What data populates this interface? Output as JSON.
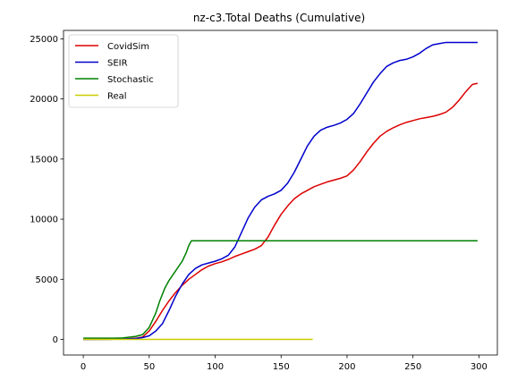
{
  "chart_data": {
    "type": "line",
    "title": "nz-c3.Total Deaths (Cumulative)",
    "xlabel": "",
    "ylabel": "",
    "xlim": [
      -15,
      314
    ],
    "ylim": [
      -1300,
      25700
    ],
    "x_ticks": [
      0,
      50,
      100,
      150,
      200,
      250,
      300
    ],
    "y_ticks": [
      0,
      5000,
      10000,
      15000,
      20000,
      25000
    ],
    "grid": false,
    "legend_position": "top-left",
    "series": [
      {
        "name": "CovidSim",
        "color": "#dd0000",
        "x": [
          0,
          20,
          30,
          40,
          45,
          50,
          55,
          60,
          65,
          70,
          75,
          80,
          85,
          90,
          95,
          100,
          105,
          110,
          115,
          120,
          125,
          130,
          135,
          140,
          145,
          150,
          155,
          160,
          165,
          170,
          175,
          180,
          185,
          190,
          195,
          200,
          205,
          210,
          215,
          220,
          225,
          230,
          235,
          240,
          245,
          250,
          255,
          260,
          265,
          270,
          275,
          280,
          285,
          290,
          295,
          299
        ],
        "y": [
          0,
          10,
          30,
          100,
          200,
          700,
          1500,
          2400,
          3200,
          3900,
          4500,
          5000,
          5400,
          5800,
          6100,
          6300,
          6450,
          6650,
          6900,
          7100,
          7300,
          7500,
          7800,
          8500,
          9500,
          10400,
          11100,
          11700,
          12100,
          12400,
          12700,
          12900,
          13100,
          13250,
          13400,
          13600,
          14100,
          14800,
          15600,
          16300,
          16900,
          17300,
          17600,
          17850,
          18050,
          18200,
          18350,
          18450,
          18550,
          18700,
          18900,
          19300,
          19900,
          20600,
          21200,
          21300
        ]
      },
      {
        "name": "SEIR",
        "color": "#0000cc",
        "x": [
          0,
          20,
          30,
          40,
          45,
          50,
          55,
          60,
          65,
          70,
          75,
          80,
          85,
          90,
          95,
          100,
          105,
          110,
          115,
          120,
          125,
          130,
          135,
          140,
          145,
          150,
          155,
          160,
          165,
          170,
          175,
          180,
          185,
          190,
          195,
          200,
          205,
          210,
          215,
          220,
          225,
          230,
          235,
          240,
          245,
          250,
          255,
          260,
          265,
          270,
          275,
          280,
          285,
          290,
          295,
          299
        ],
        "y": [
          0,
          10,
          30,
          80,
          150,
          300,
          700,
          1300,
          2400,
          3600,
          4600,
          5400,
          5900,
          6200,
          6350,
          6500,
          6700,
          7000,
          7700,
          8900,
          10100,
          11000,
          11600,
          11900,
          12100,
          12400,
          13000,
          13900,
          15000,
          16100,
          16900,
          17400,
          17650,
          17800,
          18000,
          18300,
          18800,
          19600,
          20500,
          21400,
          22100,
          22700,
          23000,
          23200,
          23300,
          23500,
          23800,
          24200,
          24500,
          24600,
          24700,
          24700,
          24700,
          24700,
          24700,
          24700
        ]
      },
      {
        "name": "Stochastic",
        "color": "#008000",
        "x": [
          0,
          20,
          30,
          40,
          45,
          50,
          55,
          58,
          62,
          65,
          70,
          75,
          78,
          80,
          82,
          90,
          100,
          150,
          200,
          250,
          299
        ],
        "y": [
          100,
          100,
          120,
          250,
          400,
          1000,
          2200,
          3200,
          4300,
          4900,
          5700,
          6500,
          7200,
          7800,
          8200,
          8200,
          8200,
          8200,
          8200,
          8200,
          8200
        ]
      },
      {
        "name": "Real",
        "color": "#cccc00",
        "x": [
          0,
          25,
          50,
          75,
          100,
          125,
          150,
          174
        ],
        "y": [
          0,
          0,
          0,
          0,
          0,
          0,
          0,
          0
        ]
      }
    ]
  }
}
